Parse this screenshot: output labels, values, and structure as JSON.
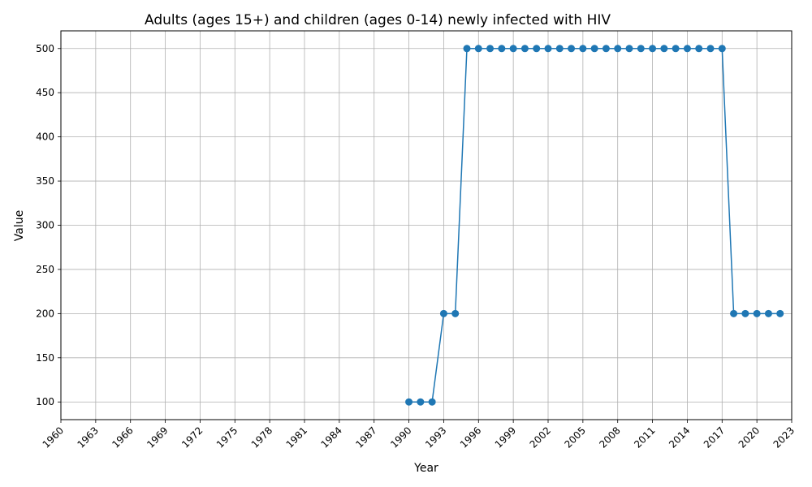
{
  "chart_data": {
    "type": "line",
    "title": "Adults (ages 15+) and children (ages 0-14) newly infected with HIV",
    "xlabel": "Year",
    "ylabel": "Value",
    "xlim": [
      1960,
      2023
    ],
    "ylim": [
      80,
      520
    ],
    "xticks": [
      1960,
      1963,
      1966,
      1969,
      1972,
      1975,
      1978,
      1981,
      1984,
      1987,
      1990,
      1993,
      1996,
      1999,
      2002,
      2005,
      2008,
      2011,
      2014,
      2017,
      2020,
      2023
    ],
    "yticks": [
      100,
      150,
      200,
      250,
      300,
      350,
      400,
      450,
      500
    ],
    "grid": true,
    "color": "#1f77b4",
    "series": [
      {
        "x": [
          1990,
          1991,
          1992,
          1993,
          1994,
          1995,
          1996,
          1997,
          1998,
          1999,
          2000,
          2001,
          2002,
          2003,
          2004,
          2005,
          2006,
          2007,
          2008,
          2009,
          2010,
          2011,
          2012,
          2013,
          2014,
          2015,
          2016,
          2017,
          2018,
          2019,
          2020,
          2021,
          2022
        ],
        "values": [
          100,
          100,
          100,
          200,
          200,
          500,
          500,
          500,
          500,
          500,
          500,
          500,
          500,
          500,
          500,
          500,
          500,
          500,
          500,
          500,
          500,
          500,
          500,
          500,
          500,
          500,
          500,
          500,
          200,
          200,
          200,
          200,
          200
        ]
      }
    ]
  }
}
